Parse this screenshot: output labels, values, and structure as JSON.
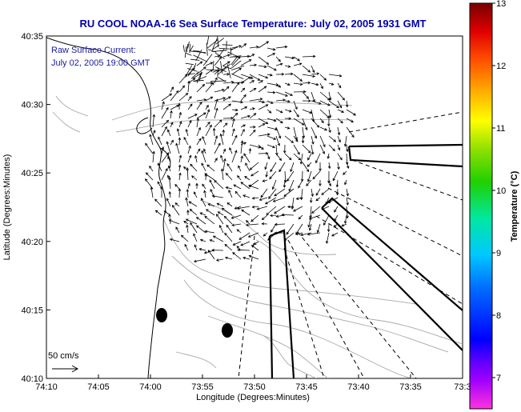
{
  "chart_data": {
    "type": "map",
    "title": "RU COOL  NOAA-16  Sea Surface Temperature:  July 02, 2005 1931 GMT",
    "legend_title": "Raw Surface Current:",
    "legend_time": "July 02, 2005 19:00 GMT",
    "scale_label": "50 cm/s",
    "xlabel": "Longitude (Degrees:Minutes)",
    "ylabel": "Latitude (Degrees:Minutes)",
    "x_ticks": [
      "74:10",
      "74:05",
      "74:00",
      "73:55",
      "73:50",
      "73:45",
      "73:40",
      "73:35",
      "73:3"
    ],
    "y_ticks": [
      "40:35",
      "40:30",
      "40:25",
      "40:20",
      "40:15",
      "40:10"
    ],
    "colorbar": {
      "label": "Temperature (°C)",
      "min": 6.5,
      "max": 13,
      "ticks": [
        "13",
        "12",
        "11",
        "10",
        "9",
        "8",
        "7"
      ],
      "tick_values": [
        13,
        12,
        11,
        10,
        9,
        8,
        7
      ]
    }
  },
  "colors": {
    "title": "#0000a8",
    "legend": "#1a1aa0",
    "coast": "#000000",
    "contour": "#a0a0a0"
  }
}
